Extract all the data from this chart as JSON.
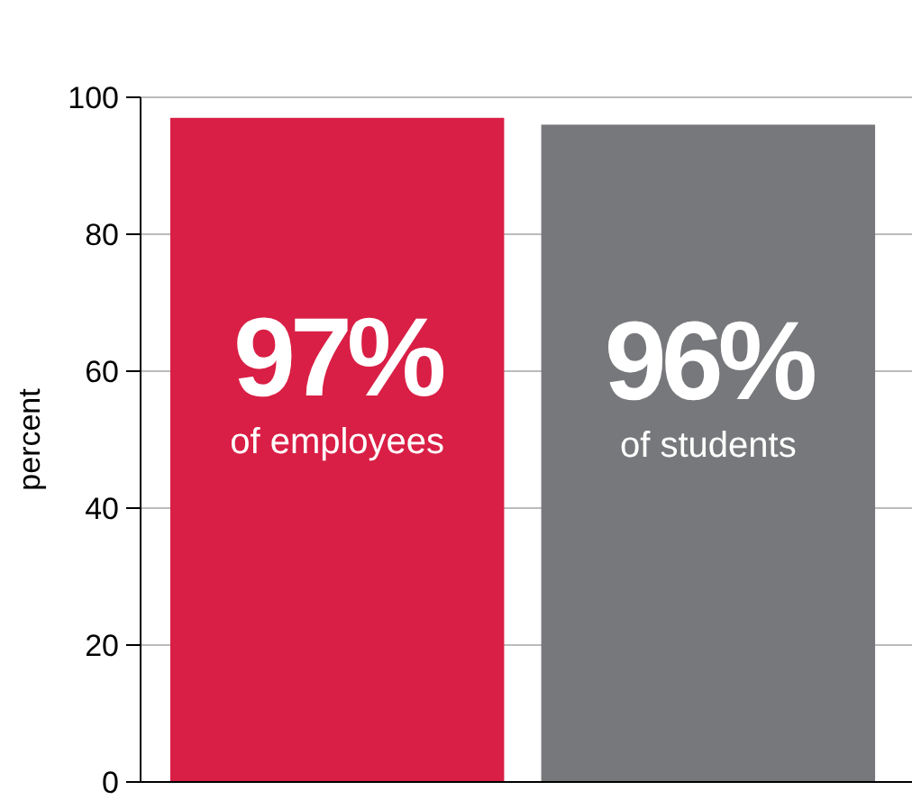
{
  "chart_data": {
    "type": "bar",
    "ylabel": "percent",
    "categories": [
      "of employees",
      "of students"
    ],
    "values": [
      97,
      96
    ],
    "colors": [
      "#d91f45",
      "#77787b"
    ],
    "value_labels": [
      "97%",
      "96%"
    ],
    "ylim": [
      0,
      100
    ],
    "yticks": [
      0,
      20,
      40,
      60,
      80,
      100
    ],
    "grid": "y"
  }
}
